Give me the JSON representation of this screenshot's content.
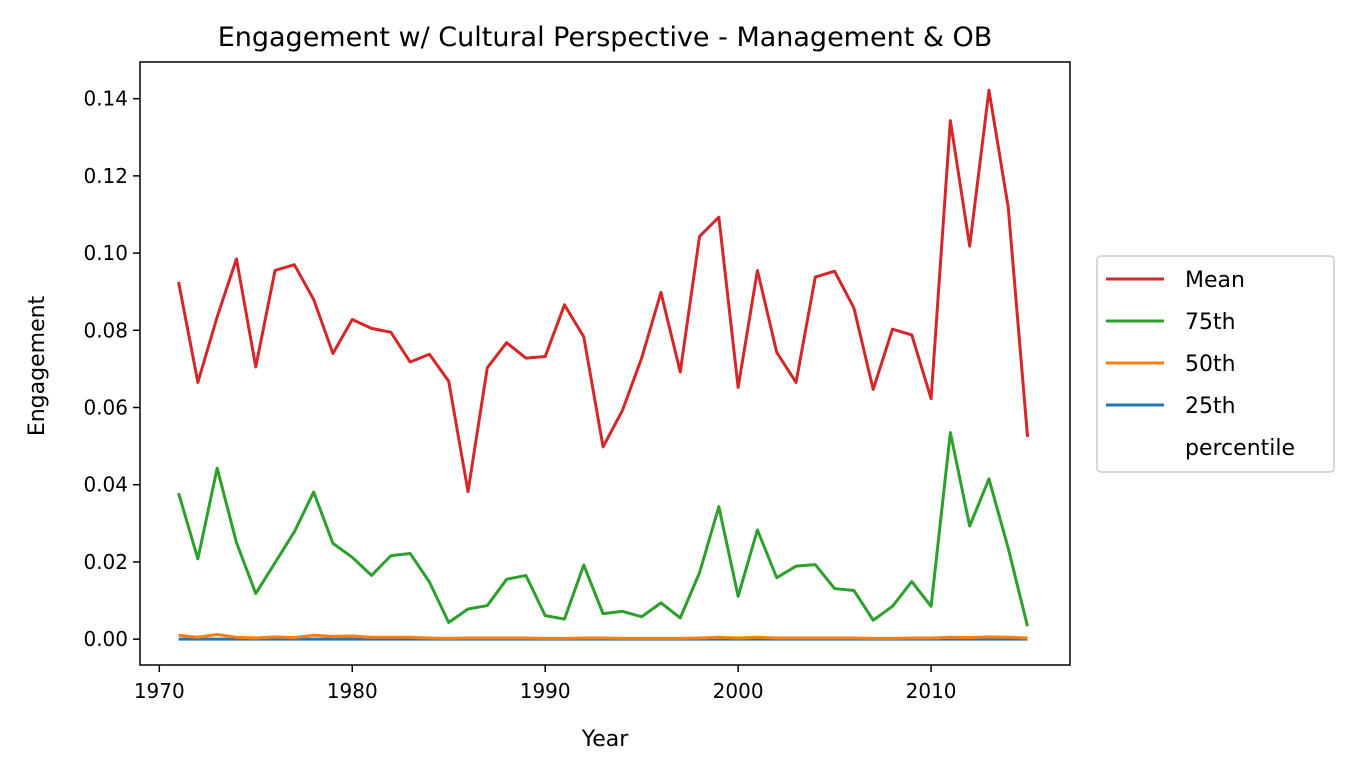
{
  "chart_data": {
    "type": "line",
    "title": "Engagement w/ Cultural Perspective - Management & OB",
    "xlabel": "Year",
    "ylabel": "Engagement",
    "xlim": [
      1969,
      2017.2
    ],
    "ylim": [
      -0.0067,
      0.1495
    ],
    "xticks": [
      1970,
      1980,
      1990,
      2000,
      2010
    ],
    "xtick_labels": [
      "1970",
      "1980",
      "1990",
      "2000",
      "2010"
    ],
    "yticks": [
      0.0,
      0.02,
      0.04,
      0.06,
      0.08,
      0.1,
      0.12,
      0.14
    ],
    "ytick_labels": [
      "0.00",
      "0.02",
      "0.04",
      "0.06",
      "0.08",
      "0.10",
      "0.12",
      "0.14"
    ],
    "grid": false,
    "legend_position": "outside-right",
    "x": [
      1971,
      1972,
      1973,
      1974,
      1975,
      1976,
      1977,
      1978,
      1979,
      1980,
      1981,
      1982,
      1983,
      1984,
      1985,
      1986,
      1987,
      1988,
      1989,
      1990,
      1991,
      1992,
      1993,
      1994,
      1995,
      1996,
      1997,
      1998,
      1999,
      2000,
      2001,
      2002,
      2003,
      2004,
      2005,
      2006,
      2007,
      2008,
      2009,
      2010,
      2011,
      2012,
      2013,
      2014,
      2015
    ],
    "series": [
      {
        "name": "Mean",
        "color": "#d62728",
        "values": [
          0.0925,
          0.0665,
          0.0835,
          0.0985,
          0.0705,
          0.0955,
          0.097,
          0.088,
          0.074,
          0.0828,
          0.0805,
          0.0795,
          0.0718,
          0.0738,
          0.0668,
          0.0382,
          0.0703,
          0.0768,
          0.0728,
          0.0732,
          0.0866,
          0.0783,
          0.0498,
          0.0592,
          0.0728,
          0.0898,
          0.0692,
          0.1043,
          0.1093,
          0.0652,
          0.0955,
          0.0743,
          0.0665,
          0.0938,
          0.0953,
          0.0858,
          0.0647,
          0.0803,
          0.0788,
          0.0623,
          0.1343,
          0.1018,
          0.1422,
          0.1118,
          0.0524
        ]
      },
      {
        "name": "75th",
        "color": "#2ca02c",
        "values": [
          0.0378,
          0.0208,
          0.0443,
          0.025,
          0.0118,
          0.0198,
          0.0278,
          0.0381,
          0.0248,
          0.0212,
          0.0165,
          0.0216,
          0.0222,
          0.0148,
          0.0043,
          0.0078,
          0.0087,
          0.0155,
          0.0165,
          0.0061,
          0.0052,
          0.0192,
          0.0066,
          0.0072,
          0.0058,
          0.0094,
          0.0055,
          0.0172,
          0.0343,
          0.0111,
          0.0283,
          0.0159,
          0.0189,
          0.0193,
          0.0131,
          0.0126,
          0.0049,
          0.0085,
          0.0149,
          0.0085,
          0.0535,
          0.0293,
          0.0415,
          0.0235,
          0.0033
        ]
      },
      {
        "name": "50th",
        "color": "#ff7f0e",
        "values": [
          0.001,
          0.0005,
          0.0012,
          0.0005,
          0.0003,
          0.0006,
          0.0004,
          0.001,
          0.0007,
          0.0008,
          0.0005,
          0.0005,
          0.0005,
          0.0003,
          0.0002,
          0.0003,
          0.0003,
          0.0003,
          0.0003,
          0.0002,
          0.0002,
          0.0003,
          0.0003,
          0.0002,
          0.0002,
          0.0002,
          0.0002,
          0.0003,
          0.0005,
          0.0003,
          0.0005,
          0.0003,
          0.0003,
          0.0003,
          0.0003,
          0.0003,
          0.0002,
          0.0002,
          0.0003,
          0.0003,
          0.0005,
          0.0004,
          0.0006,
          0.0005,
          0.0003
        ]
      },
      {
        "name": "25th",
        "color": "#1f77b4",
        "values": [
          0,
          0,
          0,
          0,
          0,
          0,
          0,
          0,
          0,
          0,
          0,
          0,
          0,
          0,
          0,
          0,
          0,
          0,
          0,
          0,
          0,
          0,
          0,
          0,
          0,
          0,
          0,
          0,
          0,
          0,
          0,
          0,
          0,
          0,
          0,
          0,
          0,
          0,
          0,
          0,
          0,
          0,
          0,
          0,
          0
        ]
      }
    ],
    "legend_extra_label": "percentile"
  }
}
